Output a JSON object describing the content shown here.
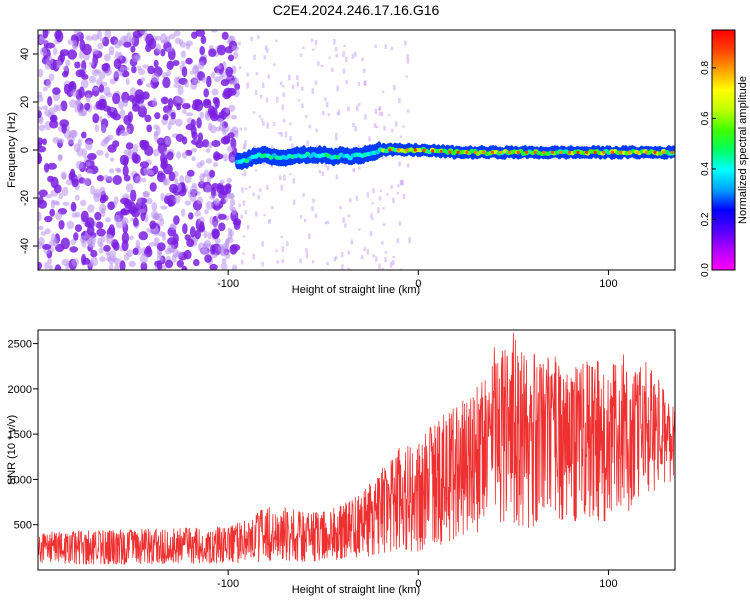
{
  "title": "C2E4.2024.246.17.16.G16",
  "chart_data": [
    {
      "type": "heatmap",
      "xlabel": "Height of straight line (km)",
      "ylabel": "Frequency (Hz)",
      "xlim": [
        -200,
        135
      ],
      "ylim": [
        -50,
        50
      ],
      "xticks": [
        -100,
        0,
        100
      ],
      "yticks": [
        -40,
        -20,
        0,
        20,
        40
      ],
      "colorbar": {
        "label": "Normalized spectral amplitude",
        "range": [
          0.0,
          0.95
        ],
        "ticks": [
          0.0,
          0.2,
          0.4,
          0.6,
          0.8
        ],
        "colormap": [
          "#ff00ff",
          "#b000ff",
          "#5000ff",
          "#0000ff",
          "#00a0ff",
          "#00ffff",
          "#00ff60",
          "#40ff00",
          "#c0ff00",
          "#ffff00",
          "#ffa000",
          "#ff4000",
          "#ff0000"
        ]
      },
      "ridge": [
        {
          "x": -95,
          "y": -5
        },
        {
          "x": -90,
          "y": -4
        },
        {
          "x": -85,
          "y": -2
        },
        {
          "x": -80,
          "y": -2
        },
        {
          "x": -75,
          "y": -3
        },
        {
          "x": -70,
          "y": -3
        },
        {
          "x": -60,
          "y": -2
        },
        {
          "x": -50,
          "y": -2
        },
        {
          "x": -45,
          "y": -3
        },
        {
          "x": -40,
          "y": -2
        },
        {
          "x": -35,
          "y": -3
        },
        {
          "x": -30,
          "y": -2
        },
        {
          "x": -25,
          "y": -1
        },
        {
          "x": -20,
          "y": 0
        },
        {
          "x": -10,
          "y": 0
        },
        {
          "x": 0,
          "y": 0
        },
        {
          "x": 20,
          "y": -1
        },
        {
          "x": 40,
          "y": -1
        },
        {
          "x": 60,
          "y": -1
        },
        {
          "x": 80,
          "y": -1
        },
        {
          "x": 100,
          "y": -1
        },
        {
          "x": 120,
          "y": -1
        },
        {
          "x": 135,
          "y": -1
        }
      ],
      "noise_region": {
        "x": [
          -200,
          -95
        ],
        "y": [
          -50,
          50
        ]
      }
    },
    {
      "type": "line",
      "xlabel": "Height of straight line (km)",
      "ylabel": "SNR (10 * v/v)",
      "xlim": [
        -200,
        135
      ],
      "ylim": [
        0,
        2650
      ],
      "xticks": [
        -100,
        0,
        100
      ],
      "yticks": [
        500,
        1000,
        1500,
        2000,
        2500
      ],
      "color": "#ee3030",
      "envelope": [
        {
          "x": -200,
          "low": 60,
          "high": 420
        },
        {
          "x": -150,
          "low": 60,
          "high": 450
        },
        {
          "x": -100,
          "low": 70,
          "high": 480
        },
        {
          "x": -90,
          "low": 80,
          "high": 560
        },
        {
          "x": -80,
          "low": 90,
          "high": 700
        },
        {
          "x": -70,
          "low": 90,
          "high": 700
        },
        {
          "x": -60,
          "low": 90,
          "high": 650
        },
        {
          "x": -50,
          "low": 100,
          "high": 650
        },
        {
          "x": -40,
          "low": 120,
          "high": 720
        },
        {
          "x": -30,
          "low": 130,
          "high": 850
        },
        {
          "x": -20,
          "low": 180,
          "high": 1100
        },
        {
          "x": -10,
          "low": 220,
          "high": 1350
        },
        {
          "x": 0,
          "low": 200,
          "high": 1400
        },
        {
          "x": 10,
          "low": 250,
          "high": 1700
        },
        {
          "x": 20,
          "low": 350,
          "high": 1800
        },
        {
          "x": 30,
          "low": 400,
          "high": 2000
        },
        {
          "x": 40,
          "low": 450,
          "high": 2300
        },
        {
          "x": 50,
          "low": 500,
          "high": 2600
        },
        {
          "x": 60,
          "low": 450,
          "high": 2200
        },
        {
          "x": 70,
          "low": 500,
          "high": 2400
        },
        {
          "x": 80,
          "low": 550,
          "high": 2200
        },
        {
          "x": 90,
          "low": 500,
          "high": 2350
        },
        {
          "x": 100,
          "low": 550,
          "high": 2300
        },
        {
          "x": 110,
          "low": 600,
          "high": 2250
        },
        {
          "x": 120,
          "low": 800,
          "high": 2300
        },
        {
          "x": 130,
          "low": 950,
          "high": 2000
        },
        {
          "x": 135,
          "low": 1000,
          "high": 1800
        }
      ],
      "spikes": [
        {
          "x": 40,
          "y": 2460
        },
        {
          "x": 50,
          "y": 2620
        },
        {
          "x": 61,
          "y": 2380
        },
        {
          "x": 108,
          "y": 2380
        }
      ]
    }
  ]
}
